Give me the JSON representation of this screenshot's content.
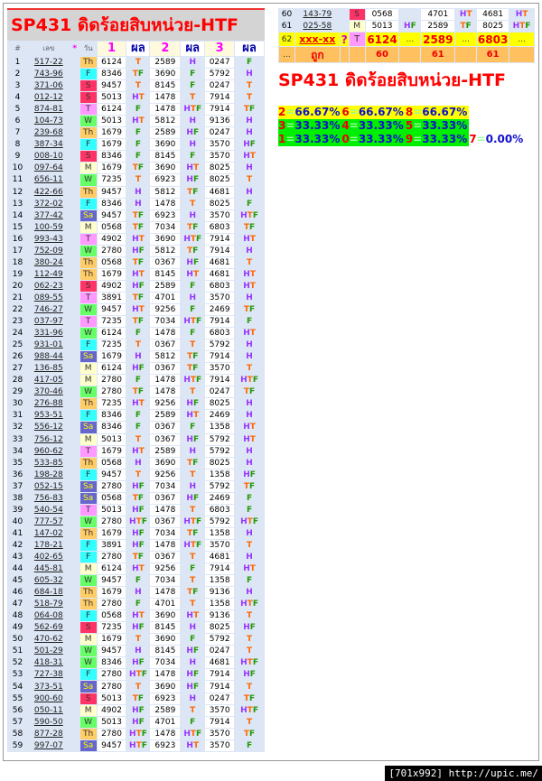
{
  "title": "SP431 ดิดร้อยสิบหน่วย-HTF",
  "header": {
    "num": "#",
    "lek": "เลข",
    "star": "*",
    "day": "วัน",
    "c1": "1",
    "p1": "ผล",
    "c2": "2",
    "p2": "ผล",
    "c3": "3",
    "p3": "ผล"
  },
  "day_colors": {
    "Th": "#ffcc66",
    "F": "#33ffff",
    "S": "#ff3366",
    "T": "#ff99ff",
    "W": "#66ff66",
    "M": "#ffffcc",
    "Sa": "#6666cc"
  },
  "result_colors": {
    "H": "#9933ff",
    "T": "#ff6600",
    "F": "#229900"
  },
  "rows": [
    [
      "1",
      "517-22",
      "Th",
      "6124",
      "T",
      "2589",
      "H",
      "0247",
      "F"
    ],
    [
      "2",
      "743-96",
      "F",
      "8346",
      "TF",
      "3690",
      "F",
      "5792",
      "H"
    ],
    [
      "3",
      "371-06",
      "S",
      "9457",
      "T",
      "8145",
      "F",
      "0247",
      "T"
    ],
    [
      "4",
      "012-12",
      "S",
      "5013",
      "HT",
      "1478",
      "T",
      "7914",
      "T"
    ],
    [
      "5",
      "874-81",
      "T",
      "6124",
      "F",
      "1478",
      "HTF",
      "7914",
      "TF"
    ],
    [
      "6",
      "104-73",
      "W",
      "5013",
      "HT",
      "5812",
      "H",
      "9136",
      "H"
    ],
    [
      "7",
      "239-68",
      "Th",
      "1679",
      "F",
      "2589",
      "HF",
      "0247",
      "H"
    ],
    [
      "8",
      "387-34",
      "F",
      "1679",
      "F",
      "3690",
      "H",
      "3570",
      "HF"
    ],
    [
      "9",
      "008-10",
      "S",
      "8346",
      "F",
      "8145",
      "F",
      "3570",
      "HT"
    ],
    [
      "10",
      "097-64",
      "M",
      "1679",
      "TF",
      "3690",
      "HT",
      "8025",
      "H"
    ],
    [
      "11",
      "656-11",
      "W",
      "7235",
      "T",
      "6923",
      "HF",
      "8025",
      "T"
    ],
    [
      "12",
      "422-66",
      "Th",
      "9457",
      "H",
      "5812",
      "TF",
      "4681",
      "H"
    ],
    [
      "13",
      "372-02",
      "F",
      "8346",
      "H",
      "1478",
      "T",
      "8025",
      "F"
    ],
    [
      "14",
      "377-42",
      "Sa",
      "9457",
      "TF",
      "6923",
      "H",
      "3570",
      "HTF"
    ],
    [
      "15",
      "100-59",
      "M",
      "0568",
      "TF",
      "7034",
      "TF",
      "6803",
      "TF"
    ],
    [
      "16",
      "993-43",
      "T",
      "4902",
      "HT",
      "3690",
      "HTF",
      "7914",
      "HT"
    ],
    [
      "17",
      "752-09",
      "W",
      "2780",
      "HF",
      "5812",
      "TF",
      "7914",
      "H"
    ],
    [
      "18",
      "380-24",
      "Th",
      "0568",
      "TF",
      "0367",
      "HF",
      "4681",
      "T"
    ],
    [
      "19",
      "112-49",
      "Th",
      "1679",
      "HT",
      "8145",
      "HT",
      "4681",
      "HT"
    ],
    [
      "20",
      "062-23",
      "S",
      "4902",
      "HF",
      "2589",
      "F",
      "6803",
      "HT"
    ],
    [
      "21",
      "089-55",
      "T",
      "3891",
      "TF",
      "4701",
      "H",
      "3570",
      "H"
    ],
    [
      "22",
      "746-27",
      "W",
      "9457",
      "HT",
      "9256",
      "F",
      "2469",
      "TF"
    ],
    [
      "23",
      "037-97",
      "T",
      "7235",
      "TF",
      "7034",
      "HTF",
      "7914",
      "F"
    ],
    [
      "24",
      "331-96",
      "W",
      "6124",
      "F",
      "1478",
      "F",
      "6803",
      "HT"
    ],
    [
      "25",
      "931-01",
      "F",
      "7235",
      "T",
      "0367",
      "T",
      "5792",
      "H"
    ],
    [
      "26",
      "988-44",
      "Sa",
      "1679",
      "H",
      "5812",
      "TF",
      "7914",
      "H"
    ],
    [
      "27",
      "136-85",
      "M",
      "6124",
      "HF",
      "0367",
      "TF",
      "3570",
      "T"
    ],
    [
      "28",
      "417-05",
      "M",
      "2780",
      "F",
      "1478",
      "HTF",
      "7914",
      "HTF"
    ],
    [
      "29",
      "370-46",
      "W",
      "2780",
      "TF",
      "1478",
      "T",
      "0247",
      "TF"
    ],
    [
      "30",
      "276-88",
      "Th",
      "7235",
      "HT",
      "9256",
      "HF",
      "8025",
      "H"
    ],
    [
      "31",
      "953-51",
      "F",
      "8346",
      "F",
      "2589",
      "HT",
      "2469",
      "H"
    ],
    [
      "32",
      "556-12",
      "Sa",
      "8346",
      "F",
      "0367",
      "F",
      "1358",
      "HT"
    ],
    [
      "33",
      "756-12",
      "M",
      "5013",
      "T",
      "0367",
      "HF",
      "5792",
      "HT"
    ],
    [
      "34",
      "960-62",
      "T",
      "1679",
      "HT",
      "2589",
      "H",
      "5792",
      "H"
    ],
    [
      "35",
      "533-85",
      "Th",
      "0568",
      "H",
      "3690",
      "TF",
      "8025",
      "H"
    ],
    [
      "36",
      "198-28",
      "F",
      "9457",
      "T",
      "9256",
      "T",
      "1358",
      "HF"
    ],
    [
      "37",
      "052-15",
      "Sa",
      "2780",
      "HF",
      "7034",
      "H",
      "5792",
      "TF"
    ],
    [
      "38",
      "756-83",
      "Sa",
      "0568",
      "TF",
      "0367",
      "HF",
      "2469",
      "F"
    ],
    [
      "39",
      "540-54",
      "T",
      "5013",
      "HF",
      "1478",
      "T",
      "6803",
      "F"
    ],
    [
      "40",
      "777-57",
      "W",
      "2780",
      "HTF",
      "0367",
      "HTF",
      "5792",
      "HTF"
    ],
    [
      "41",
      "147-02",
      "Th",
      "1679",
      "HF",
      "7034",
      "TF",
      "1358",
      "H"
    ],
    [
      "42",
      "178-21",
      "F",
      "3891",
      "HF",
      "1478",
      "HTF",
      "3570",
      "T"
    ],
    [
      "43",
      "402-65",
      "F",
      "2780",
      "TF",
      "0367",
      "T",
      "4681",
      "H"
    ],
    [
      "44",
      "445-81",
      "M",
      "6124",
      "HT",
      "9256",
      "F",
      "7914",
      "HT"
    ],
    [
      "45",
      "605-32",
      "W",
      "9457",
      "F",
      "7034",
      "T",
      "1358",
      "F"
    ],
    [
      "46",
      "684-18",
      "Th",
      "1679",
      "H",
      "1478",
      "TF",
      "9136",
      "H"
    ],
    [
      "47",
      "518-79",
      "Th",
      "2780",
      "F",
      "4701",
      "T",
      "1358",
      "HTF"
    ],
    [
      "48",
      "064-08",
      "F",
      "0568",
      "HT",
      "3690",
      "HT",
      "9136",
      "T"
    ],
    [
      "49",
      "562-69",
      "S",
      "7235",
      "HF",
      "8145",
      "H",
      "8025",
      "HF"
    ],
    [
      "50",
      "470-62",
      "M",
      "1679",
      "T",
      "3690",
      "F",
      "5792",
      "T"
    ],
    [
      "51",
      "501-29",
      "W",
      "9457",
      "H",
      "8145",
      "HF",
      "0247",
      "T"
    ],
    [
      "52",
      "418-31",
      "W",
      "8346",
      "HF",
      "7034",
      "H",
      "4681",
      "HTF"
    ],
    [
      "53",
      "727-38",
      "F",
      "2780",
      "HTF",
      "1478",
      "HF",
      "7914",
      "HF"
    ],
    [
      "54",
      "373-51",
      "Sa",
      "2780",
      "T",
      "3690",
      "HF",
      "7914",
      "T"
    ],
    [
      "55",
      "900-60",
      "S",
      "5013",
      "TF",
      "6923",
      "H",
      "0247",
      "TF"
    ],
    [
      "56",
      "050-11",
      "M",
      "4902",
      "HF",
      "2589",
      "T",
      "3570",
      "HTF"
    ],
    [
      "57",
      "590-50",
      "W",
      "5013",
      "HF",
      "4701",
      "F",
      "7914",
      "T"
    ],
    [
      "58",
      "877-28",
      "Th",
      "2780",
      "HTF",
      "1478",
      "HTF",
      "3570",
      "TF"
    ],
    [
      "59",
      "997-07",
      "Sa",
      "9457",
      "HTF",
      "6923",
      "HT",
      "3570",
      "F"
    ]
  ],
  "right_rows": [
    [
      "60",
      "143-79",
      "S",
      "0568",
      "",
      "4701",
      "HT",
      "4681",
      "HT"
    ],
    [
      "61",
      "025-58",
      "M",
      "5013",
      "HF",
      "2589",
      "TF",
      "8025",
      "HTF"
    ]
  ],
  "next_row": {
    "num": "62",
    "lek": "xxx-xx",
    "star": "?",
    "day": "T",
    "n1": "6124",
    "r1": "...",
    "n2": "2589",
    "r2": "...",
    "n3": "6803",
    "r3": "..."
  },
  "hit_row": {
    "num": "...",
    "label": "ถูก",
    "c1": "60",
    "c2": "61",
    "c3": "61"
  },
  "stats": [
    {
      "digit": "2",
      "value": "66.67%",
      "bg": "#ffff00"
    },
    {
      "digit": "6",
      "value": "66.67%",
      "bg": "#ffff00"
    },
    {
      "digit": "8",
      "value": "66.67%",
      "bg": "#ffff00"
    },
    {
      "digit": "3",
      "value": "33.33%",
      "bg": "#00ee00"
    },
    {
      "digit": "4",
      "value": "33.33%",
      "bg": "#00ee00"
    },
    {
      "digit": "5",
      "value": "33.33%",
      "bg": "#00ee00"
    },
    {
      "digit": "1",
      "value": "33.33%",
      "bg": "#00ee00"
    },
    {
      "digit": "0",
      "value": "33.33%",
      "bg": "#00ee00"
    },
    {
      "digit": "9",
      "value": "33.33%",
      "bg": "#00ee00"
    },
    {
      "digit": "7",
      "value": "0.00%",
      "bg": "#ffffff"
    }
  ],
  "footer": "[701x992] http://upic.me/"
}
